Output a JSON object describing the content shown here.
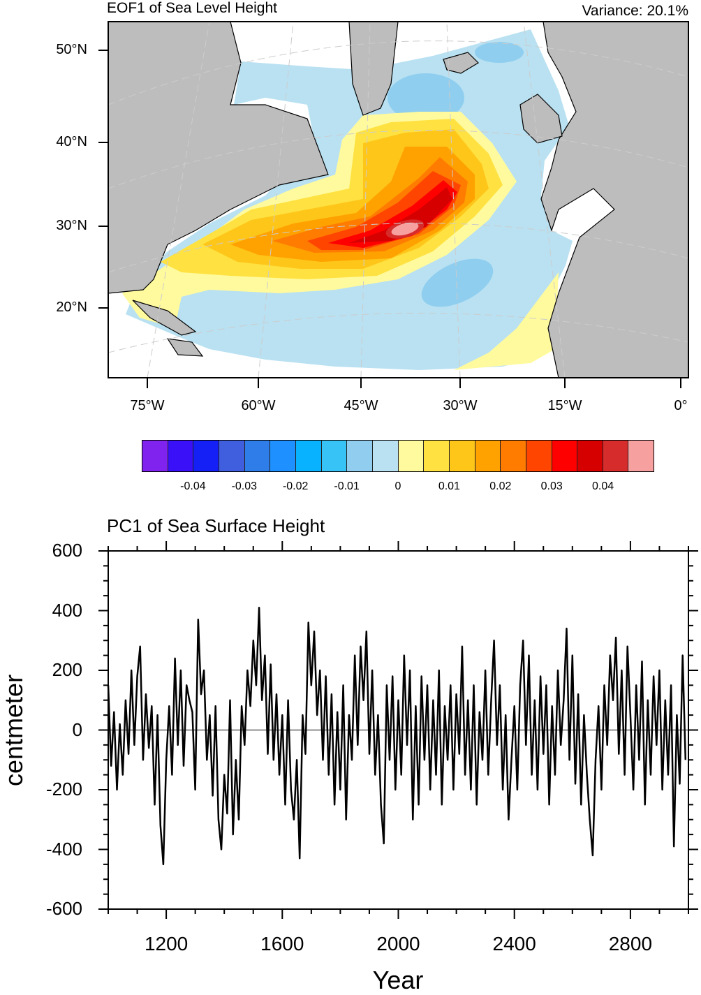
{
  "map": {
    "title": "EOF1 of Sea Level Height",
    "variance": "Variance: 20.1%",
    "lat_labels": [
      "50°N",
      "40°N",
      "30°N",
      "20°N"
    ],
    "lon_labels": [
      "75°W",
      "60°W",
      "45°W",
      "30°W",
      "15°W",
      "0°"
    ],
    "colors": {
      "land": "#bdbdbd",
      "nodata": "#ffffff",
      "coast": "#000000"
    }
  },
  "colorbar": {
    "colors": [
      "#8123ee",
      "#3a10f8",
      "#1420f5",
      "#3f5fdf",
      "#2f7de9",
      "#1e90ff",
      "#08b2ff",
      "#38c3f7",
      "#90cdef",
      "#b9e1f2",
      "#fffa9e",
      "#ffe241",
      "#ffc61a",
      "#ffa200",
      "#ff7c00",
      "#ff4500",
      "#ff0000",
      "#d70000",
      "#d72c2c",
      "#f7a0a0"
    ],
    "labels": [
      "-0.04",
      "-0.03",
      "-0.02",
      "-0.01",
      "0",
      "0.01",
      "0.02",
      "0.03",
      "0.04"
    ]
  },
  "chart_data": {
    "type": "line",
    "title": "PC1 of Sea Surface Height",
    "xlabel": "Year",
    "ylabel": "centmeter",
    "xlim": [
      1000,
      3000
    ],
    "ylim": [
      -600,
      600
    ],
    "xticks": [
      "1200",
      "1600",
      "2000",
      "2400",
      "2800"
    ],
    "xtick_values": [
      1200,
      1600,
      2000,
      2400,
      2800
    ],
    "yticks": [
      "600",
      "400",
      "200",
      "0",
      "-200",
      "-400",
      "-600"
    ],
    "ytick_values": [
      600,
      400,
      200,
      0,
      -200,
      -400,
      -600
    ],
    "x_start": 1000,
    "x_step": 10,
    "values": [
      150,
      -120,
      60,
      -200,
      20,
      -150,
      100,
      -80,
      200,
      -50,
      180,
      280,
      -100,
      120,
      -60,
      80,
      -250,
      50,
      -320,
      -450,
      -100,
      80,
      -150,
      240,
      -50,
      200,
      -120,
      150,
      100,
      60,
      -200,
      370,
      120,
      200,
      -100,
      50,
      -220,
      80,
      -300,
      -400,
      -150,
      -280,
      100,
      -350,
      -100,
      -300,
      80,
      -50,
      200,
      80,
      300,
      150,
      410,
      100,
      250,
      -80,
      220,
      -100,
      120,
      -150,
      50,
      -250,
      100,
      -200,
      -300,
      -100,
      -430,
      50,
      -80,
      360,
      150,
      330,
      50,
      200,
      -100,
      180,
      -150,
      120,
      -250,
      60,
      -200,
      150,
      -300,
      50,
      -100,
      250,
      -50,
      280,
      100,
      330,
      -80,
      200,
      -150,
      50,
      -250,
      -380,
      150,
      -100,
      180,
      -200,
      100,
      -150,
      250,
      -50,
      200,
      -300,
      80,
      -250,
      180,
      -100,
      150,
      -200,
      100,
      -150,
      200,
      -250,
      80,
      -100,
      150,
      -200,
      120,
      -80,
      280,
      -150,
      100,
      -200,
      150,
      -250,
      60,
      -100,
      200,
      -150,
      100,
      300,
      -50,
      150,
      -200,
      50,
      -300,
      -100,
      80,
      -200,
      150,
      300,
      -50,
      250,
      -150,
      100,
      -200,
      180,
      -80,
      150,
      -250,
      80,
      -150,
      200,
      -50,
      100,
      340,
      -100,
      250,
      -180,
      120,
      -250,
      50,
      -150,
      -300,
      -420,
      -100,
      80,
      -200,
      150,
      -50,
      250,
      100,
      310,
      -80,
      200,
      -150,
      280,
      50,
      -200,
      150,
      -100,
      230,
      -250,
      100,
      -150,
      180,
      -50,
      200,
      -200,
      100,
      -150,
      150,
      -390,
      50,
      -180,
      250,
      -100
    ],
    "zero_line": true
  }
}
